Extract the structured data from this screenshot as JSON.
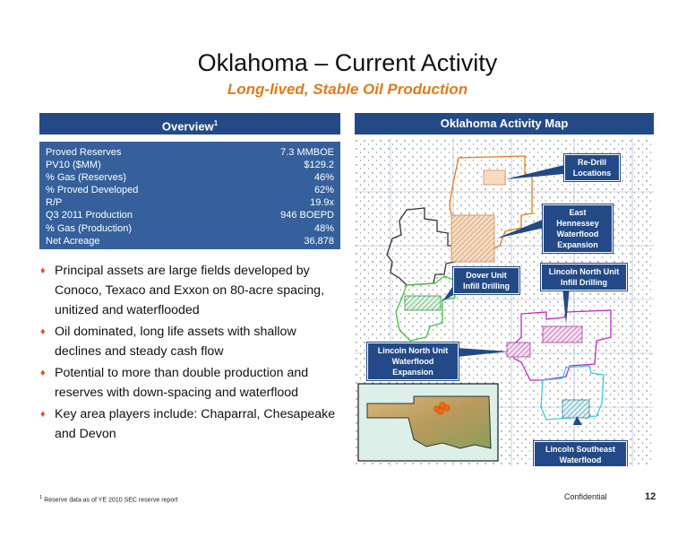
{
  "title": "Oklahoma – Current Activity",
  "subtitle": "Long-lived, Stable Oil Production",
  "overview": {
    "header": "Overview",
    "header_sup": "1",
    "rows": [
      {
        "label": "Proved Reserves",
        "value": "7.3 MMBOE"
      },
      {
        "label": "PV10 ($MM)",
        "value": "$129.2"
      },
      {
        "label": "% Gas (Reserves)",
        "value": "46%"
      },
      {
        "label": "% Proved Developed",
        "value": "62%"
      },
      {
        "label": "R/P",
        "value": "19.9x"
      },
      {
        "label": "Q3 2011 Production",
        "value": "946 BOEPD"
      },
      {
        "label": "% Gas (Production)",
        "value": "48%"
      },
      {
        "label": "Net Acreage",
        "value": "36,878"
      }
    ]
  },
  "bullets": [
    "Principal assets are large fields developed by Conoco, Texaco and Exxon on 80-acre spacing, unitized and waterflooded",
    "Oil dominated, long life assets with shallow declines and steady cash flow",
    "Potential to more than double production and reserves with down-spacing and waterflood",
    "Key area players include: Chaparral, Chesapeake and Devon"
  ],
  "map": {
    "header": "Oklahoma Activity Map",
    "callouts": {
      "redrill_1": "Re-Drill",
      "redrill_2": "Locations",
      "easthen_1": "East Hennessey",
      "easthen_2": "Waterflood",
      "easthen_3": "Expansion",
      "dover_1": "Dover Unit",
      "dover_2": "Infill Drilling",
      "lincoln_infill_1": "Lincoln North Unit",
      "lincoln_infill_2": "Infill Drilling",
      "lincoln_wf_1": "Lincoln North Unit",
      "lincoln_wf_2": "Waterflood Expansion",
      "lincoln_se_1": "Lincoln Southeast",
      "lincoln_se_2": "Waterflood Expansion"
    },
    "colors": {
      "orange_outline": "#e87a1e",
      "green_outline": "#3cc43c",
      "magenta_outline": "#c826c8",
      "cyan_outline": "#2ed0e0",
      "dark_outline": "#333333"
    }
  },
  "footer": {
    "footnote_sup": "1",
    "footnote": "Reserve data as of YE 2010 SEC reserve report",
    "confidential": "Confidential",
    "page": "12"
  }
}
